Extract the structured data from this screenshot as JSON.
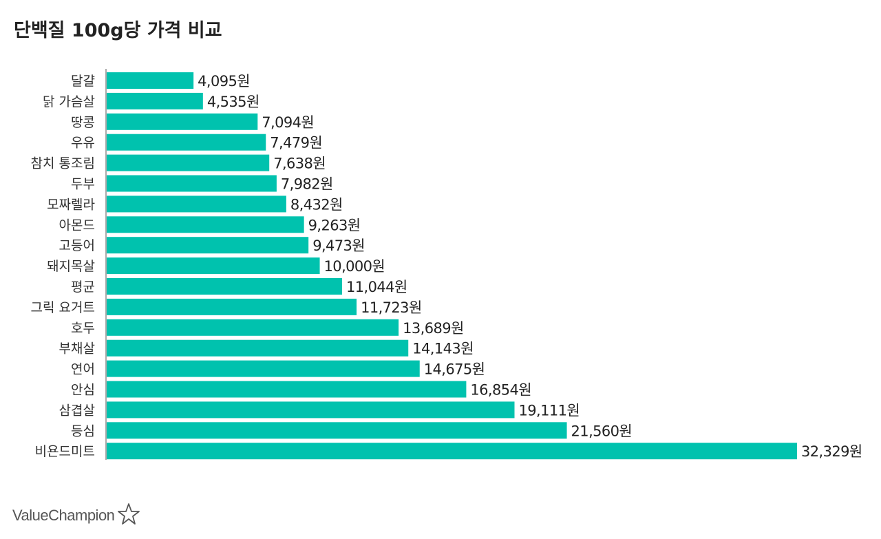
{
  "chart_data": {
    "type": "bar",
    "orientation": "horizontal",
    "title": "단백질 100g당 가격 비교",
    "value_suffix": "원",
    "categories": [
      "달걀",
      "닭 가슴살",
      "땅콩",
      "우유",
      "참치 통조림",
      "두부",
      "모짜렐라",
      "아몬드",
      "고등어",
      "돼지목살",
      "평균",
      "그릭 요거트",
      "호두",
      "부채살",
      "연어",
      "안심",
      "삼겹살",
      "등심",
      "비욘드미트"
    ],
    "values": [
      4095,
      4535,
      7094,
      7479,
      7638,
      7982,
      8432,
      9263,
      9473,
      10000,
      11044,
      11723,
      13689,
      14143,
      14675,
      16854,
      19111,
      21560,
      32329
    ],
    "value_labels": [
      "4,095원",
      "4,535원",
      "7,094원",
      "7,479원",
      "7,638원",
      "7,982원",
      "8,432원",
      "9,263원",
      "9,473원",
      "10,000원",
      "11,044원",
      "11,723원",
      "13,689원",
      "14,143원",
      "14,675원",
      "16,854원",
      "19,111원",
      "21,560원",
      "32,329원"
    ],
    "xlim": [
      0,
      32329
    ],
    "bar_color": "#00c2ae",
    "xlabel": "",
    "ylabel": ""
  },
  "brand": {
    "name": "ValueChampion"
  }
}
